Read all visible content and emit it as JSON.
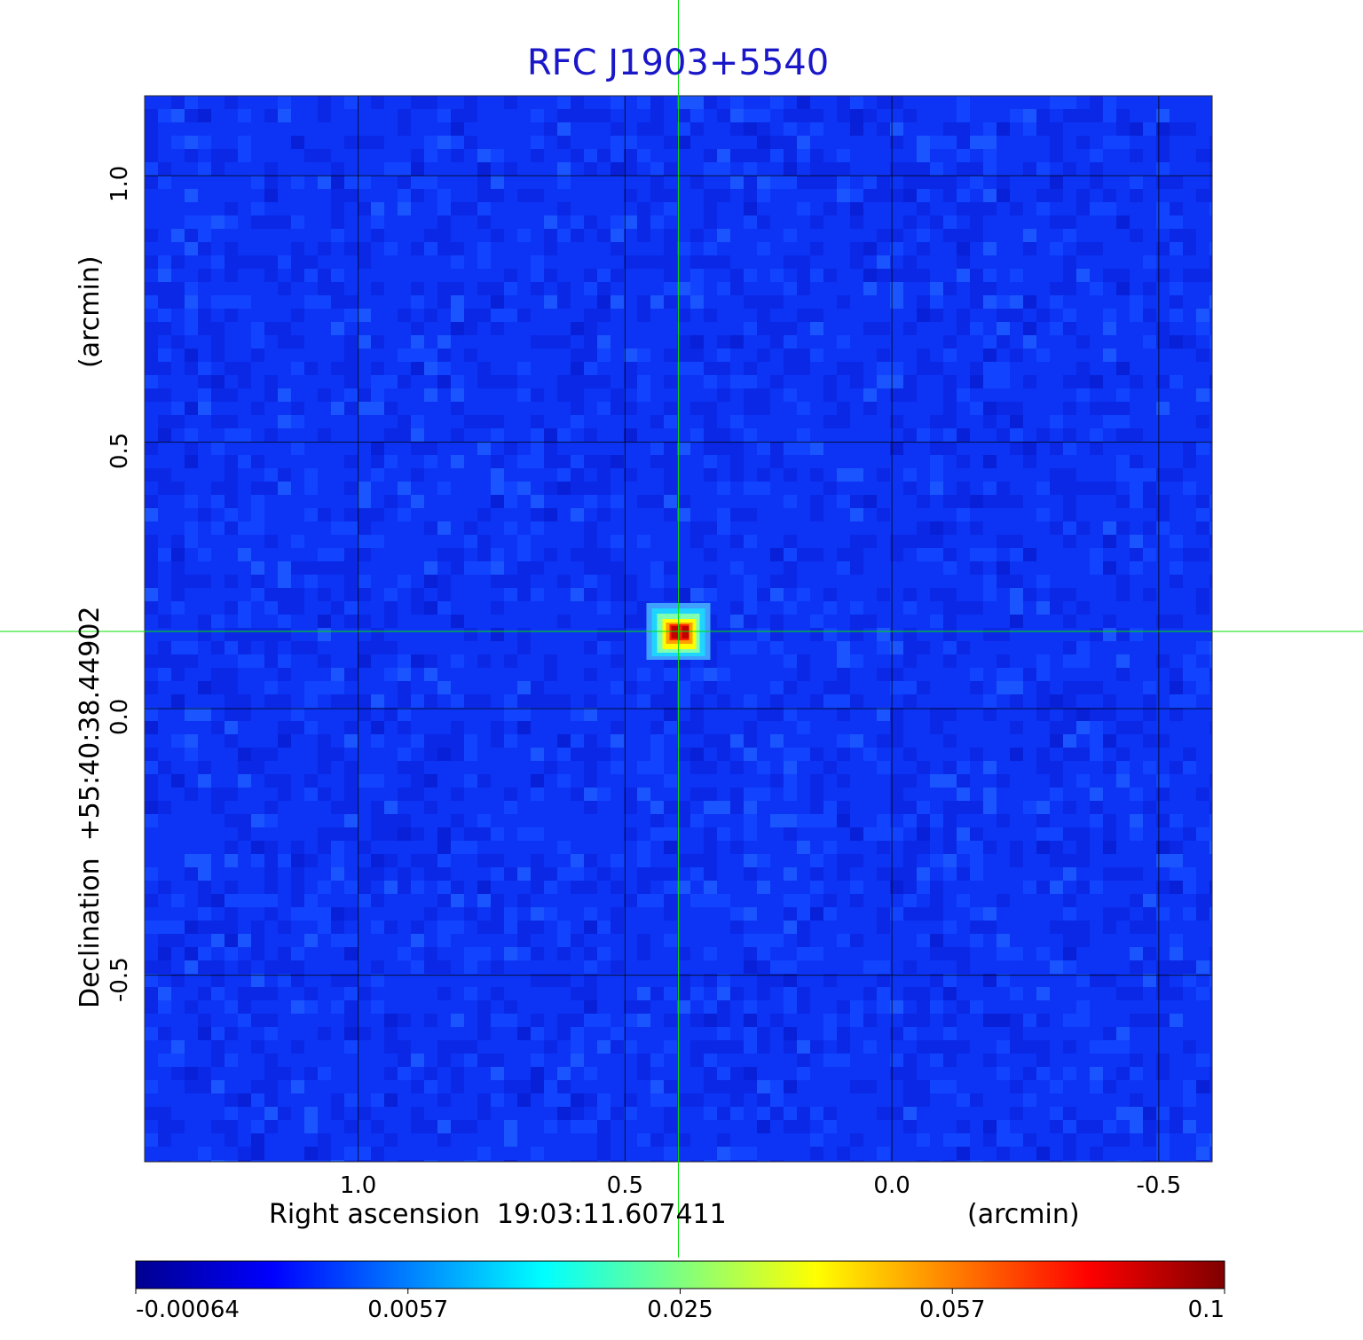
{
  "chart_data": {
    "type": "heatmap",
    "title": "RFC J1903+5540",
    "xlabel": "Right ascension  19:03:11.607411",
    "xunit": "(arcmin)",
    "ylabel": "Declination  +55:40:38.44902",
    "yunit": "(arcmin)",
    "xlim": [
      1.4,
      -0.6
    ],
    "ylim": [
      -0.85,
      1.15
    ],
    "x_ticks": [
      1.0,
      0.5,
      0.0,
      -0.5
    ],
    "x_tick_labels": [
      "1.0",
      "0.5",
      "0.0",
      "-0.5"
    ],
    "y_ticks": [
      1.0,
      0.5,
      0.0,
      -0.5
    ],
    "y_tick_labels": [
      "1.0",
      "0.5",
      "0.0",
      "-0.5"
    ],
    "grid": true,
    "crosshair": {
      "x": 0.4,
      "y": 0.145
    },
    "source_peak": {
      "x": 0.4,
      "y": 0.145,
      "value": 0.1
    },
    "colormap": "jet",
    "colorbar": {
      "placement": "bottom",
      "ticks": [
        -0.00064,
        0.0057,
        0.025,
        0.057,
        0.1
      ],
      "tick_labels": [
        "-0.00064",
        "0.0057",
        "0.025",
        "0.057",
        "0.1"
      ]
    },
    "colors": {
      "title": "#1a17c8",
      "crosshair": "#00e000",
      "grid": "#000000"
    }
  }
}
